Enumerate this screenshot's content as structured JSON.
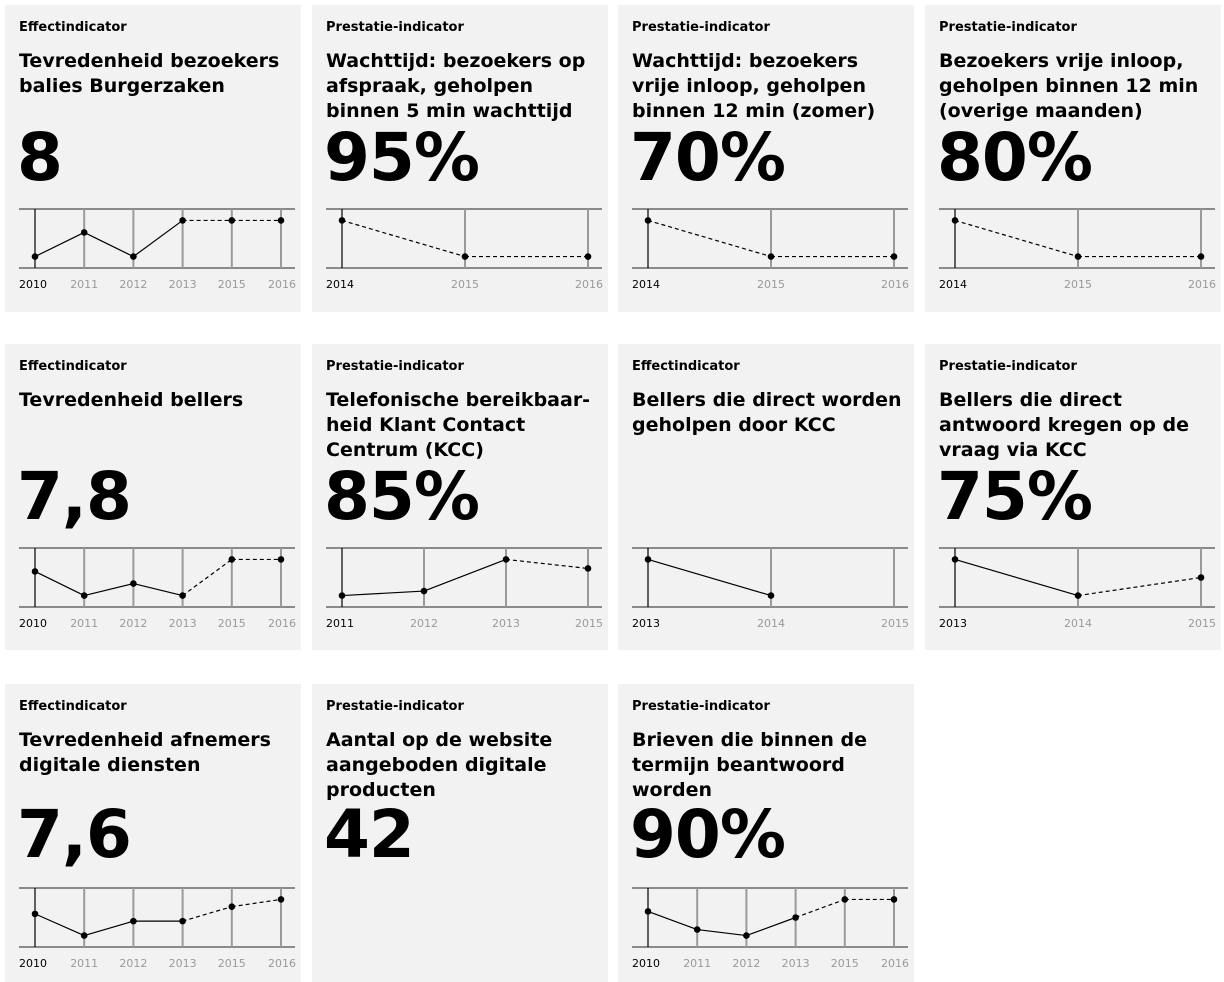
{
  "chart_data": [
    {
      "type": "line",
      "category": "Effectindicator",
      "title": "Tevredenheid bezoekers balies Burgerzaken",
      "value": "8",
      "x": [
        "2010",
        "2011",
        "2012",
        "2013",
        "2015",
        "2016"
      ],
      "y": [
        7.7,
        7.9,
        7.7,
        8.0,
        8.0,
        8.0
      ],
      "dashed_from_index": 3
    },
    {
      "type": "line",
      "category": "Prestatie-indicator",
      "title": "Wachttijd: bezoekers op afspraak, geholpen binnen 5 min wachttijd",
      "value": "95%",
      "x": [
        "2014",
        "2015",
        "2016"
      ],
      "y": [
        97,
        95,
        95
      ],
      "dashed_from_index": 0
    },
    {
      "type": "line",
      "category": "Prestatie-indicator",
      "title": "Wachttijd: bezoekers vrije inloop, geholpen binnen 12 min (zomer)",
      "value": "70%",
      "x": [
        "2014",
        "2015",
        "2016"
      ],
      "y": [
        72,
        70,
        70
      ],
      "dashed_from_index": 0
    },
    {
      "type": "line",
      "category": "Prestatie-indicator",
      "title": "Bezoekers vrije inloop, geholpen binnen 12 min (overige maanden)",
      "value": "80%",
      "x": [
        "2014",
        "2015",
        "2016"
      ],
      "y": [
        82,
        80,
        80
      ],
      "dashed_from_index": 0
    },
    {
      "type": "line",
      "category": "Effectindicator",
      "title": "Tevredenheid bellers",
      "value": "7,8",
      "x": [
        "2010",
        "2011",
        "2012",
        "2013",
        "2015",
        "2016"
      ],
      "y": [
        7.7,
        7.5,
        7.6,
        7.5,
        7.8,
        7.8
      ],
      "dashed_from_index": 3
    },
    {
      "type": "line",
      "category": "Prestatie-indicator",
      "title": "Telefonische bereikbaar-heid Klant Contact Centrum (KCC)",
      "value": "85%",
      "x": [
        "2011",
        "2012",
        "2013",
        "2015"
      ],
      "y": [
        82,
        82.5,
        86,
        85
      ],
      "dashed_from_index": 2
    },
    {
      "type": "line",
      "category": "Effectindicator",
      "title": "Bellers die direct worden geholpen door KCC",
      "value": "",
      "x": [
        "2013",
        "2014",
        "2015"
      ],
      "y": [
        80,
        70,
        null
      ],
      "dashed_from_index": null
    },
    {
      "type": "line",
      "category": "Prestatie-indicator",
      "title": "Bellers die direct antwoord kregen op de vraag via KCC",
      "value": "75%",
      "x": [
        "2013",
        "2014",
        "2015"
      ],
      "y": [
        80,
        70,
        75
      ],
      "dashed_from_index": 1
    },
    {
      "type": "line",
      "category": "Effectindicator",
      "title": "Tevredenheid afnemers digitale diensten",
      "value": "7,6",
      "x": [
        "2010",
        "2011",
        "2012",
        "2013",
        "2015",
        "2016"
      ],
      "y": [
        7.5,
        7.2,
        7.4,
        7.4,
        7.6,
        7.7
      ],
      "dashed_from_index": 3
    },
    {
      "type": "none",
      "category": "Prestatie-indicator",
      "title": "Aantal op de website aangeboden digitale producten",
      "value": "42",
      "x": [],
      "y": [],
      "dashed_from_index": null
    },
    {
      "type": "line",
      "category": "Prestatie-indicator",
      "title": "Brieven die binnen de termijn beantwoord worden",
      "value": "90%",
      "x": [
        "2010",
        "2011",
        "2012",
        "2013",
        "2015",
        "2016"
      ],
      "y": [
        88,
        85,
        84,
        87,
        90,
        90
      ],
      "dashed_from_index": 3
    }
  ]
}
